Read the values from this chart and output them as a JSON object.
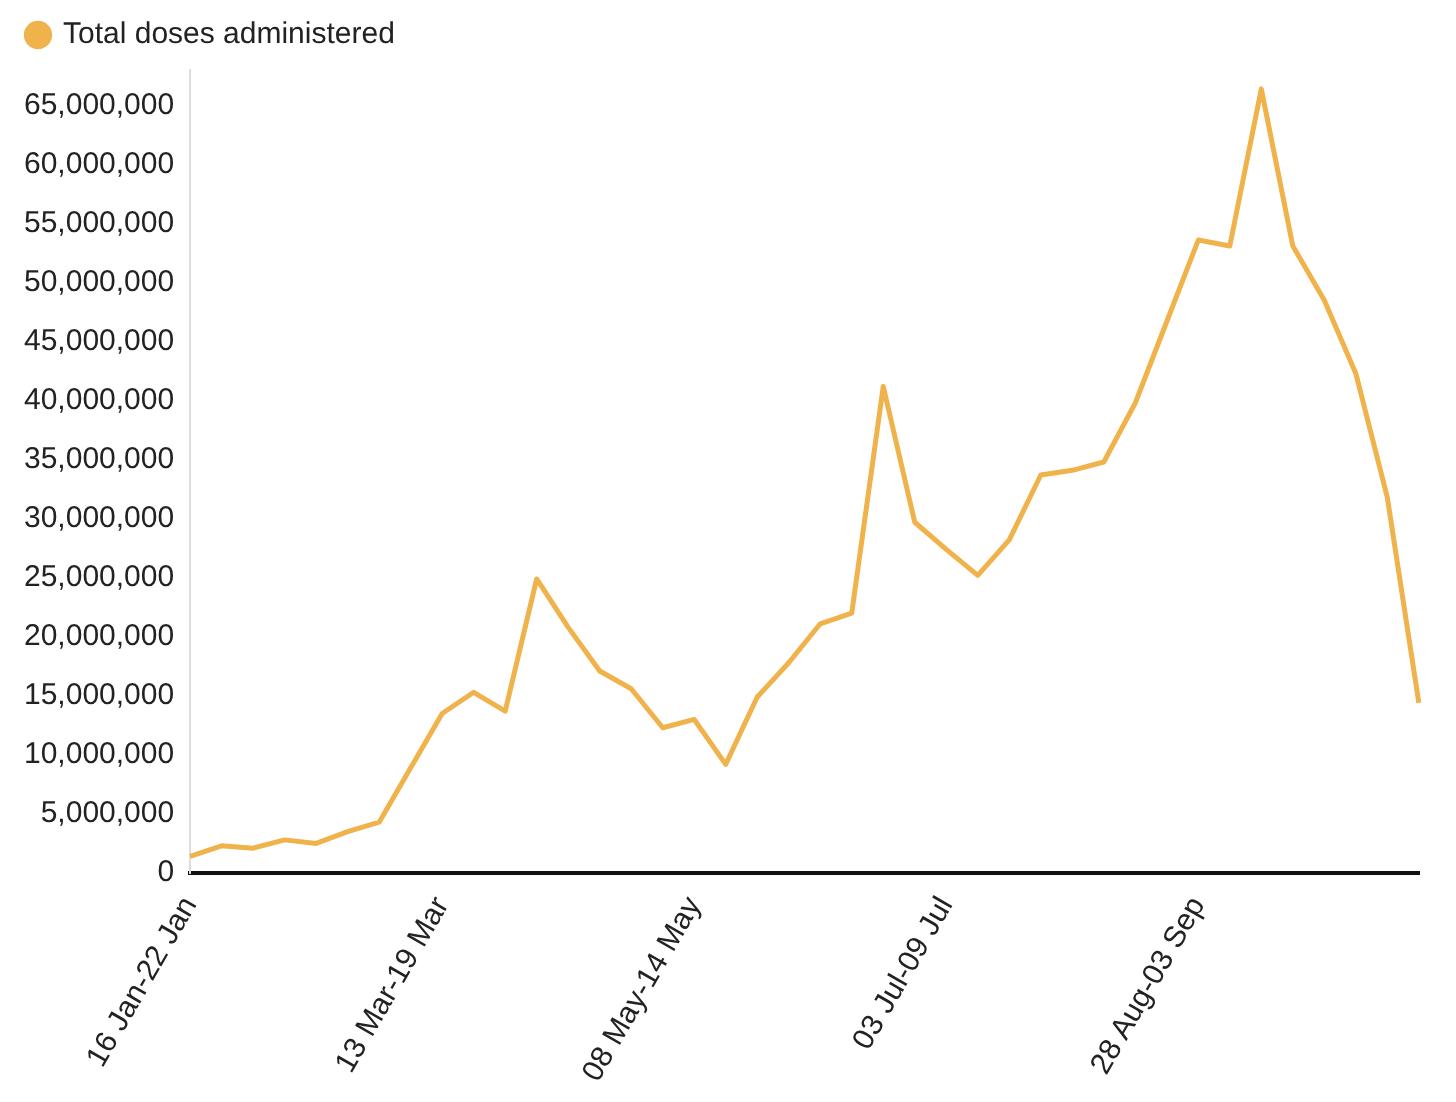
{
  "chart_data": {
    "type": "line",
    "categories": [
      "16 Jan-22 Jan",
      null,
      null,
      null,
      null,
      null,
      null,
      null,
      "13 Mar-19 Mar",
      null,
      null,
      null,
      null,
      null,
      null,
      null,
      "08 May-14 May",
      null,
      null,
      null,
      null,
      null,
      null,
      null,
      "03 Jul-09 Jul",
      null,
      null,
      null,
      null,
      null,
      null,
      null,
      "28 Aug-03 Sep",
      null,
      null,
      null,
      null,
      null,
      null,
      null
    ],
    "series": [
      {
        "name": "Total doses administered",
        "color": "#f0b24a",
        "values": [
          1400000,
          2300000,
          2100000,
          2800000,
          2500000,
          3500000,
          4300000,
          8900000,
          13500000,
          15300000,
          13700000,
          24900000,
          20800000,
          17100000,
          15600000,
          12300000,
          13000000,
          9200000,
          14900000,
          17800000,
          21100000,
          22000000,
          41200000,
          29700000,
          27400000,
          25200000,
          28200000,
          33700000,
          34100000,
          34800000,
          39800000,
          46700000,
          53600000,
          53100000,
          66400000,
          53100000,
          48500000,
          42300000,
          31800000,
          14400000
        ]
      }
    ],
    "ylim": [
      0,
      68000000
    ],
    "yticks": [
      0,
      {
        "value": 5000000,
        "label": "5,000,000"
      },
      {
        "value": 10000000,
        "label": "10,000,000"
      },
      {
        "value": 15000000,
        "label": "15,000,000"
      },
      {
        "value": 20000000,
        "label": "20,000,000"
      },
      {
        "value": 25000000,
        "label": "25,000,000"
      },
      {
        "value": 30000000,
        "label": "30,000,000"
      },
      {
        "value": 35000000,
        "label": "35,000,000"
      },
      {
        "value": 40000000,
        "label": "40,000,000"
      },
      {
        "value": 45000000,
        "label": "45,000,000"
      },
      {
        "value": 50000000,
        "label": "50,000,000"
      },
      {
        "value": 55000000,
        "label": "55,000,000"
      },
      {
        "value": 60000000,
        "label": "60,000,000"
      },
      {
        "value": 65000000,
        "label": "65,000,000"
      }
    ],
    "grid": false,
    "legend": "top left",
    "marker": "none",
    "line_style": "solid"
  }
}
